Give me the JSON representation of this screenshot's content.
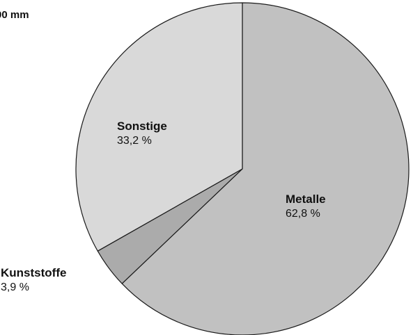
{
  "header": {
    "partial_label": "00 mm"
  },
  "chart_data": {
    "type": "pie",
    "title": "",
    "start": "12 o'clock",
    "direction": "clockwise",
    "slices": [
      {
        "name": "Metalle",
        "value": 62.8,
        "label": "62,8 %",
        "color": "#c1c1c1"
      },
      {
        "name": "Kunststoffe",
        "value": 3.9,
        "label": "3,9 %",
        "color": "#ababab"
      },
      {
        "name": "Sonstige",
        "value": 33.2,
        "label": "33,2 %",
        "color": "#d9d9d9"
      }
    ],
    "stroke_color": "#1a1a1a"
  }
}
